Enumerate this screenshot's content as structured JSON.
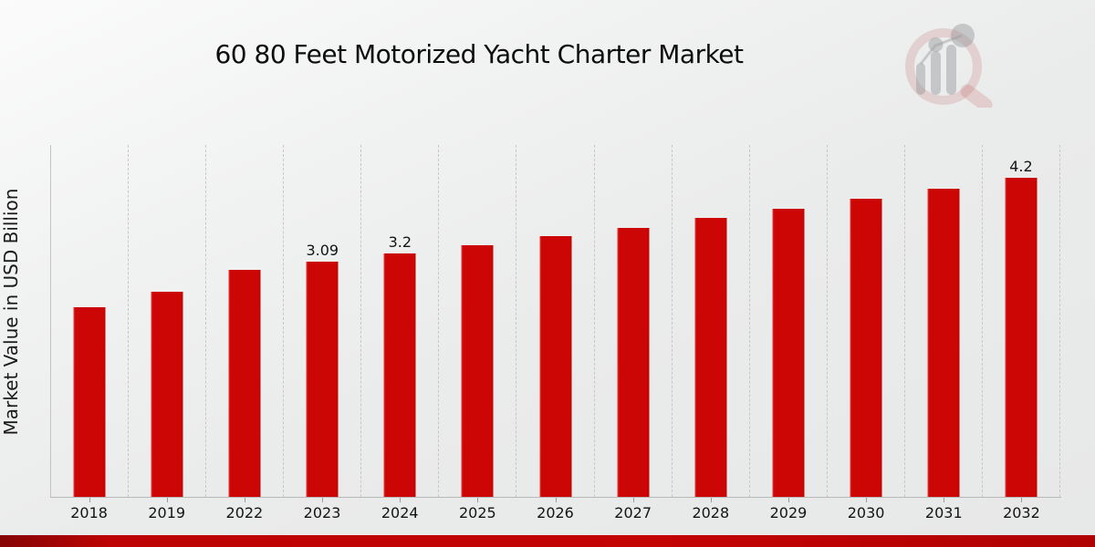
{
  "header": {
    "title": "60 80 Feet Motorized Yacht Charter Market"
  },
  "branding": {
    "logo_icon": "magnifier-bar-chart-watermark"
  },
  "chart_data": {
    "type": "bar",
    "title": "60 80 Feet Motorized Yacht Charter Market",
    "ylabel": "Market Value in USD Billion",
    "xlabel": "",
    "categories": [
      "2018",
      "2019",
      "2022",
      "2023",
      "2024",
      "2025",
      "2026",
      "2027",
      "2028",
      "2029",
      "2030",
      "2031",
      "2032"
    ],
    "values": [
      2.5,
      2.7,
      2.99,
      3.09,
      3.2,
      3.31,
      3.43,
      3.54,
      3.67,
      3.79,
      3.92,
      4.06,
      4.2
    ],
    "point_labels": [
      "",
      "",
      "",
      "3.09",
      "3.2",
      "",
      "",
      "",
      "",
      "",
      "",
      "",
      "4.2"
    ],
    "ylim": [
      0,
      4.63
    ],
    "grid": "vertical-dashed",
    "legend": "none",
    "bar_color": "#cc0505",
    "axis_color": "#b7b8b8",
    "label_color": "#131313"
  },
  "footer": {
    "accent_bar_color": "#c40303"
  }
}
